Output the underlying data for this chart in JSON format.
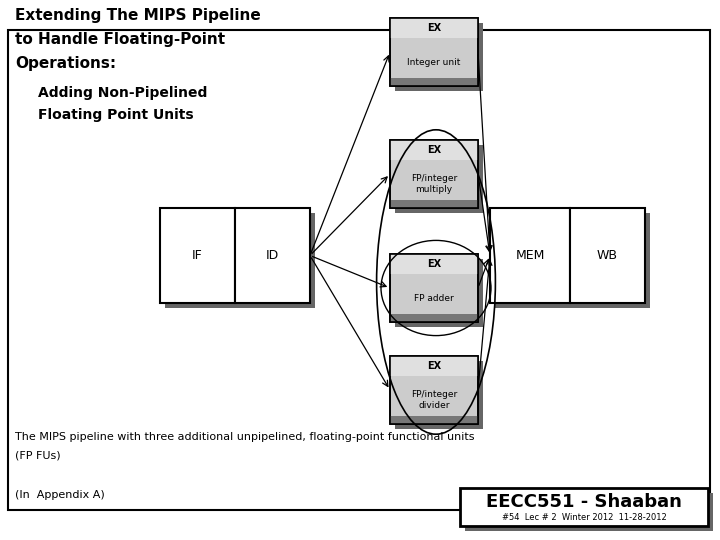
{
  "bg_color": "#ffffff",
  "title_line1": "Extending The MIPS Pipeline",
  "title_line2": "to Handle Floating-Point",
  "title_line3": "Operations:",
  "subtitle_line1": "Adding Non-Pipelined",
  "subtitle_line2": "Floating Point Units",
  "caption_line1": "The MIPS pipeline with three additional unpipelined, floating-point functional units",
  "caption_line2": "(FP FUs)",
  "footer_left": "(In  Appendix A)",
  "footer_right": "EECC551 - Shaaban",
  "footer_right_sub": "#54  Lec # 2  Winter 2012  11-28-2012",
  "shadow_color": "#666666",
  "box_white": "#ffffff",
  "box_light_gray": "#cccccc",
  "box_mid_gray": "#aaaaaa",
  "box_dark_gray": "#777777"
}
